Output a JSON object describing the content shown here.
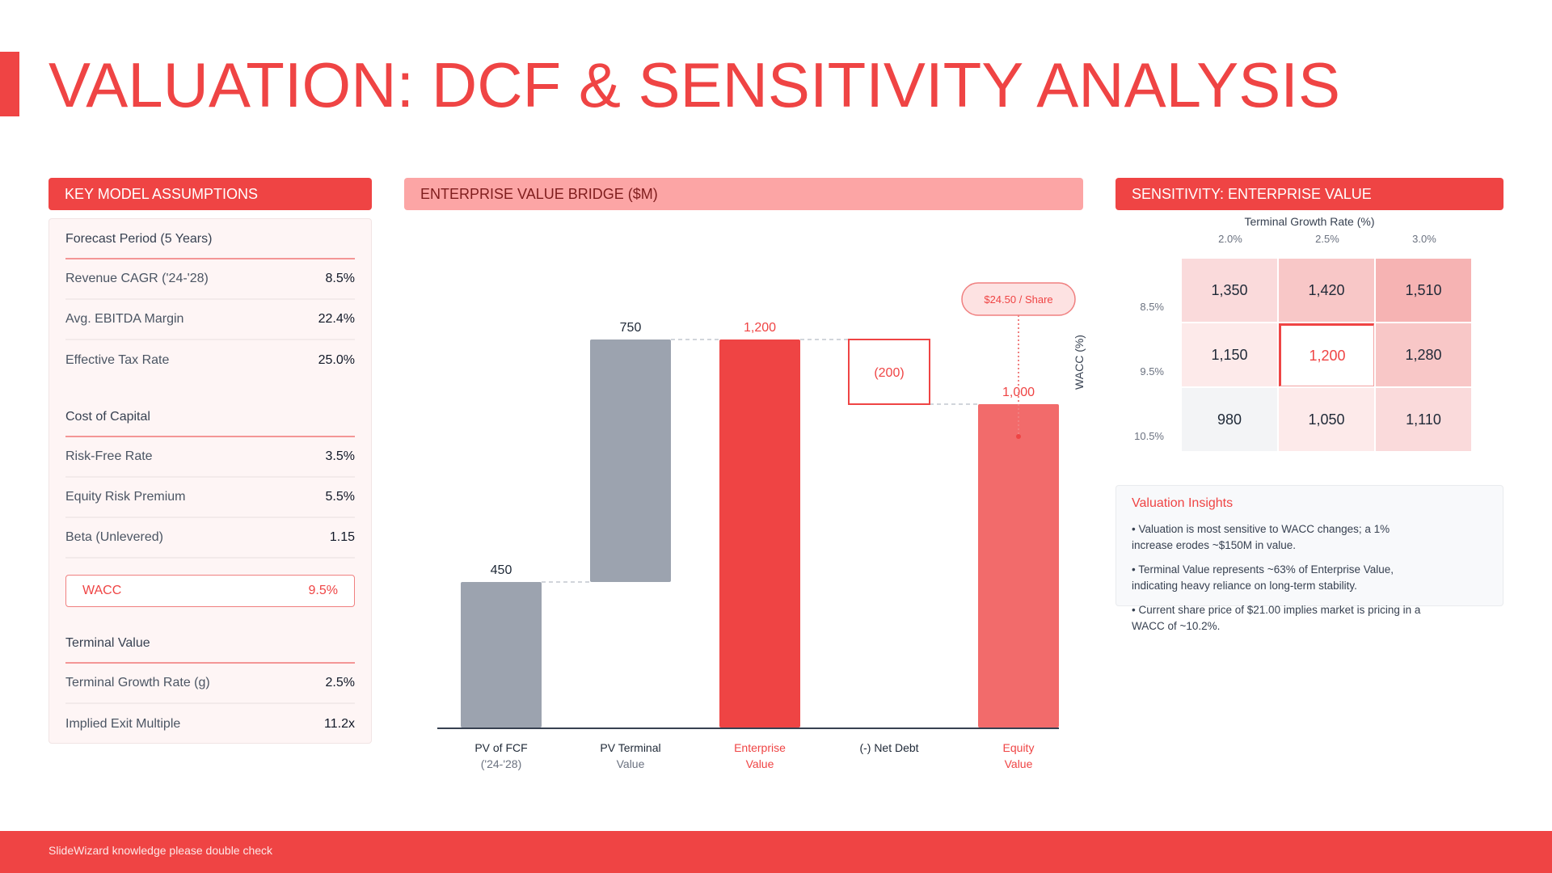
{
  "page": {
    "title": "VALUATION: DCF & SENSITIVITY ANALYSIS",
    "footer": "SlideWizard knowledge please double check"
  },
  "colors": {
    "accent": "#ef4444",
    "accent_light": "#f26b6b",
    "neutral_bar": "#9ca3af",
    "header_pink": "#fca5a5"
  },
  "assumptions": {
    "header": "KEY MODEL ASSUMPTIONS",
    "groups": [
      {
        "title": "Forecast Period (5 Years)",
        "rows": [
          {
            "label": "Revenue CAGR ('24-'28)",
            "value": "8.5%"
          },
          {
            "label": "Avg. EBITDA Margin",
            "value": "22.4%"
          },
          {
            "label": "Effective Tax Rate",
            "value": "25.0%"
          }
        ]
      },
      {
        "title": "Cost of Capital",
        "rows": [
          {
            "label": "Risk-Free Rate",
            "value": "3.5%"
          },
          {
            "label": "Equity Risk Premium",
            "value": "5.5%"
          },
          {
            "label": "Beta (Unlevered)",
            "value": "1.15"
          }
        ],
        "highlight": {
          "label": "WACC",
          "value": "9.5%"
        }
      },
      {
        "title": "Terminal Value",
        "rows": [
          {
            "label": "Terminal Growth Rate (g)",
            "value": "2.5%"
          },
          {
            "label": "Implied Exit Multiple",
            "value": "11.2x"
          }
        ]
      }
    ]
  },
  "bridge": {
    "header": "ENTERPRISE VALUE BRIDGE ($M)"
  },
  "chart_data": [
    {
      "type": "bar",
      "subtype": "waterfall",
      "title": "ENTERPRISE VALUE BRIDGE ($M)",
      "categories": [
        [
          "PV of FCF",
          "('24-'28)"
        ],
        [
          "PV Terminal",
          "Value"
        ],
        [
          "Enterprise",
          "Value"
        ],
        [
          "(-) Net Debt",
          ""
        ],
        [
          "Equity",
          "Value"
        ]
      ],
      "steps": [
        {
          "kind": "increase",
          "start": 0,
          "end": 450,
          "label": "450",
          "style": "neutral"
        },
        {
          "kind": "increase",
          "start": 450,
          "end": 1200,
          "label": "750",
          "style": "neutral"
        },
        {
          "kind": "total",
          "start": 0,
          "end": 1200,
          "label": "1,200",
          "style": "accent"
        },
        {
          "kind": "decrease",
          "start": 1200,
          "end": 1000,
          "label": "(200)",
          "style": "outline"
        },
        {
          "kind": "total",
          "start": 0,
          "end": 1000,
          "label": "1,000",
          "style": "accent_light"
        }
      ],
      "values": [
        450,
        750,
        1200,
        -200,
        1000
      ],
      "ylim": [
        0,
        1200
      ],
      "grid": false,
      "annotation": {
        "text": "$24.50 / Share",
        "target": 4
      },
      "stray_label": "WACC (%)"
    },
    {
      "type": "heatmap",
      "title": "SENSITIVITY: ENTERPRISE VALUE",
      "xlabel": "Terminal Growth Rate (%)",
      "ylabel": "WACC (%)",
      "x": [
        "2.0%",
        "2.5%",
        "3.0%"
      ],
      "y": [
        "8.5%",
        "9.5%",
        "10.5%"
      ],
      "values": [
        [
          1350,
          1420,
          1510
        ],
        [
          1150,
          1200,
          1280
        ],
        [
          980,
          1050,
          1110
        ]
      ],
      "labels": [
        [
          "1,350",
          "1,420",
          "1,510"
        ],
        [
          "1,150",
          "1,200",
          "1,280"
        ],
        [
          "980",
          "1,050",
          "1,110"
        ]
      ],
      "base_case": [
        1,
        1
      ]
    }
  ],
  "sensitivity": {
    "header": "SENSITIVITY: ENTERPRISE VALUE",
    "col_title": "Terminal Growth Rate (%)",
    "cols": [
      "2.0%",
      "2.5%",
      "3.0%"
    ],
    "rows": [
      "8.5%",
      "9.5%",
      "10.5%"
    ],
    "cells": [
      [
        "1,350",
        "1,420",
        "1,510"
      ],
      [
        "1,150",
        "1,200",
        "1,280"
      ],
      [
        "980",
        "1,050",
        "1,110"
      ]
    ],
    "cell_colors": [
      [
        "#fadadb",
        "#f8c7c7",
        "#f6b3b3"
      ],
      [
        "#fdeaea",
        "#ffffff",
        "#f8c7c7"
      ],
      [
        "#f3f4f6",
        "#fdeaea",
        "#fadadb"
      ]
    ]
  },
  "insights": {
    "title": "Valuation Insights",
    "items": [
      "• Valuation is most sensitive to WACC changes; a 1% increase erodes ~$150M in value.",
      "• Terminal Value represents ~63% of Enterprise Value, indicating heavy reliance on long-term stability.",
      "• Current share price of $21.00 implies market is pricing in a WACC of ~10.2%."
    ]
  }
}
